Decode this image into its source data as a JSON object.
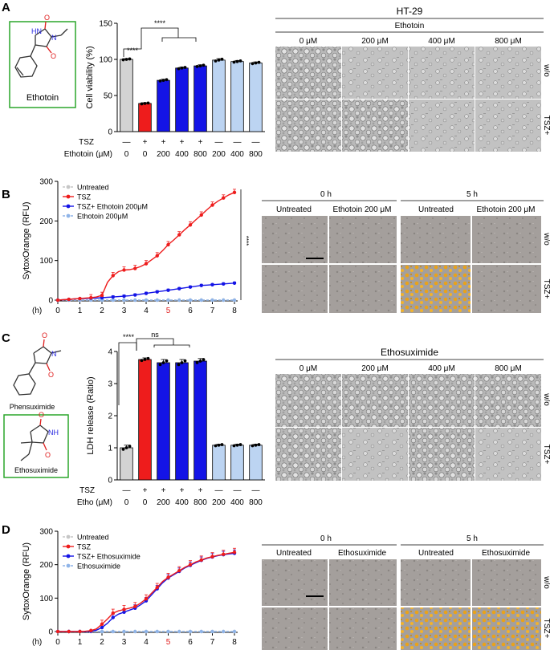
{
  "panels": {
    "A": {
      "label": "A",
      "compound": "Ethotoin",
      "tsz_row_label": "TSZ",
      "dose_row_label": "Ethotoin (μM)",
      "tsz_signs": [
        "—",
        "+",
        "+",
        "+",
        "+",
        "—",
        "—",
        "—"
      ],
      "doses": [
        "0",
        "0",
        "200",
        "400",
        "800",
        "200",
        "400",
        "800"
      ],
      "significance": "****",
      "images": {
        "cell_line": "HT-29",
        "drug": "Ethotoin",
        "columns": [
          "0 μM",
          "200 μM",
          "400 μM",
          "800 μM"
        ],
        "rows": [
          "w/o",
          "TSZ+"
        ]
      }
    },
    "B": {
      "label": "B",
      "significance": "****",
      "images": {
        "time_groups": [
          "0 h",
          "5 h"
        ],
        "columns": [
          "Untreated",
          "Ethotoin 200 μM",
          "Untreated",
          "Ethotoin 200 μM"
        ],
        "rows": [
          "w/o",
          "TSZ+"
        ]
      }
    },
    "C": {
      "label": "C",
      "compounds": [
        "Phensuximide",
        "Ethosuximide"
      ],
      "tsz_row_label": "TSZ",
      "dose_row_label": "Etho (μM)",
      "tsz_signs": [
        "—",
        "+",
        "+",
        "+",
        "+",
        "—",
        "—",
        "—"
      ],
      "doses": [
        "0",
        "0",
        "200",
        "400",
        "800",
        "200",
        "400",
        "800"
      ],
      "significance_high": "****",
      "significance_ns": "ns",
      "images": {
        "drug": "Ethosuximide",
        "columns": [
          "0 μM",
          "200 μM",
          "400 μM",
          "800 μM"
        ],
        "rows": [
          "w/o",
          "TSZ+"
        ]
      }
    },
    "D": {
      "label": "D",
      "images": {
        "time_groups": [
          "0 h",
          "5 h"
        ],
        "columns": [
          "Untreated",
          "Ethosuximide",
          "Untreated",
          "Ethosuximide"
        ],
        "rows": [
          "w/o",
          "TSZ+"
        ]
      }
    }
  },
  "chart_data": [
    {
      "id": "A-bar",
      "type": "bar",
      "ylabel": "Cell viability (%)",
      "ylim": [
        0,
        150
      ],
      "yticks": [
        "0",
        "50",
        "100",
        "150"
      ],
      "values": [
        100,
        39,
        71,
        88,
        91,
        99,
        97,
        95
      ],
      "errors": [
        1,
        1,
        1.5,
        1.5,
        1.5,
        2,
        1.5,
        1.5
      ],
      "colors": [
        "#d3d3d3",
        "#ee1c1c",
        "#1414e6",
        "#1414e6",
        "#1414e6",
        "#bcd4f2",
        "#bcd4f2",
        "#bcd4f2"
      ]
    },
    {
      "id": "B-line",
      "type": "line",
      "ylabel": "SytoxOrange (RFU)",
      "xlabel": "(h)",
      "xlim": [
        0,
        8
      ],
      "ylim": [
        0,
        300
      ],
      "xticks": [
        "0",
        "1",
        "2",
        "3",
        "4",
        "5",
        "6",
        "7",
        "8"
      ],
      "yticks": [
        "0",
        "100",
        "200",
        "300"
      ],
      "highlight_tick": "5",
      "x": [
        0,
        0.25,
        0.5,
        0.75,
        1,
        1.25,
        1.5,
        1.75,
        2,
        2.25,
        2.5,
        2.75,
        3,
        3.25,
        3.5,
        3.75,
        4,
        4.25,
        4.5,
        4.75,
        5,
        5.25,
        5.5,
        5.75,
        6,
        6.25,
        6.5,
        6.75,
        7,
        7.25,
        7.5,
        7.75,
        8
      ],
      "series": [
        {
          "name": "Untreated",
          "color": "#c6c6c6",
          "values": [
            0,
            0,
            0,
            0,
            0,
            0,
            0,
            0,
            0,
            0,
            0,
            0,
            0,
            0,
            0,
            0,
            0,
            0,
            0,
            0,
            0,
            0,
            0,
            0,
            0,
            0,
            0,
            0,
            0,
            0,
            0,
            0,
            0
          ]
        },
        {
          "name": "TSZ",
          "color": "#ee1c1c",
          "err": 8,
          "values": [
            0,
            1,
            2,
            3,
            4,
            5,
            6,
            8,
            12,
            45,
            62,
            72,
            76,
            77,
            80,
            85,
            92,
            102,
            112,
            125,
            140,
            152,
            165,
            178,
            190,
            203,
            215,
            228,
            240,
            250,
            258,
            266,
            272
          ]
        },
        {
          "name": "TSZ+ Ethotoin 200μM",
          "color": "#1414e6",
          "err": 3,
          "values": [
            0,
            1,
            2,
            3,
            4,
            4,
            5,
            5,
            6,
            7,
            8,
            9,
            10,
            11,
            13,
            15,
            17,
            19,
            21,
            23,
            25,
            27,
            29,
            31,
            33,
            35,
            37,
            38,
            39,
            40,
            41,
            42,
            43
          ]
        },
        {
          "name": "Ethotoin 200μM",
          "color": "#8fb4e8",
          "values": [
            0,
            0,
            0,
            0,
            0,
            0,
            0,
            0,
            0,
            0,
            0,
            0,
            0,
            0,
            0,
            0,
            0,
            0,
            0,
            0,
            0,
            0,
            0,
            0,
            0,
            0,
            0,
            0,
            0,
            0,
            0,
            0,
            0
          ]
        }
      ]
    },
    {
      "id": "C-bar",
      "type": "bar",
      "ylabel": "LDH release (Ratio)",
      "ylim": [
        0,
        4
      ],
      "yticks": [
        "0",
        "1",
        "2",
        "3",
        "4"
      ],
      "values": [
        1.0,
        3.75,
        3.65,
        3.65,
        3.7,
        1.08,
        1.08,
        1.08
      ],
      "errors": [
        0.08,
        0.05,
        0.1,
        0.1,
        0.08,
        0.03,
        0.03,
        0.03
      ],
      "colors": [
        "#d3d3d3",
        "#ee1c1c",
        "#1414e6",
        "#1414e6",
        "#1414e6",
        "#bcd4f2",
        "#bcd4f2",
        "#bcd4f2"
      ]
    },
    {
      "id": "D-line",
      "type": "line",
      "ylabel": "SytoxOrange (RFU)",
      "xlabel": "(h)",
      "xlim": [
        0,
        8
      ],
      "ylim": [
        0,
        300
      ],
      "xticks": [
        "0",
        "1",
        "2",
        "3",
        "4",
        "5",
        "6",
        "7",
        "8"
      ],
      "yticks": [
        "0",
        "100",
        "200",
        "300"
      ],
      "highlight_tick": "5",
      "x": [
        0,
        0.25,
        0.5,
        0.75,
        1,
        1.25,
        1.5,
        1.75,
        2,
        2.25,
        2.5,
        2.75,
        3,
        3.25,
        3.5,
        3.75,
        4,
        4.25,
        4.5,
        4.75,
        5,
        5.25,
        5.5,
        5.75,
        6,
        6.25,
        6.5,
        6.75,
        7,
        7.25,
        7.5,
        7.75,
        8
      ],
      "series": [
        {
          "name": "Untreated",
          "color": "#c6c6c6",
          "values": [
            0,
            0,
            0,
            0,
            0,
            0,
            0,
            0,
            0,
            0,
            0,
            0,
            0,
            0,
            0,
            0,
            0,
            0,
            0,
            0,
            0,
            0,
            0,
            0,
            0,
            0,
            0,
            0,
            0,
            0,
            0,
            0,
            0
          ]
        },
        {
          "name": "TSZ",
          "color": "#ee1c1c",
          "err": 12,
          "values": [
            0,
            0,
            0,
            0,
            0,
            1,
            3,
            8,
            22,
            38,
            55,
            62,
            66,
            70,
            75,
            85,
            98,
            115,
            132,
            150,
            162,
            172,
            182,
            192,
            200,
            208,
            214,
            220,
            224,
            228,
            231,
            234,
            237
          ]
        },
        {
          "name": "TSZ+ Ethosuximide",
          "color": "#1414e6",
          "err": 10,
          "values": [
            0,
            0,
            0,
            0,
            0,
            0,
            1,
            4,
            12,
            25,
            42,
            52,
            58,
            64,
            70,
            80,
            92,
            110,
            128,
            146,
            160,
            170,
            180,
            190,
            198,
            206,
            213,
            219,
            223,
            227,
            230,
            232,
            234
          ]
        },
        {
          "name": "Ethosuximide",
          "color": "#8fb4e8",
          "values": [
            0,
            0,
            0,
            0,
            0,
            0,
            0,
            0,
            0,
            0,
            0,
            0,
            0,
            0,
            0,
            0,
            0,
            0,
            0,
            0,
            0,
            0,
            0,
            0,
            0,
            0,
            0,
            0,
            0,
            0,
            0,
            0,
            0
          ]
        }
      ]
    }
  ]
}
